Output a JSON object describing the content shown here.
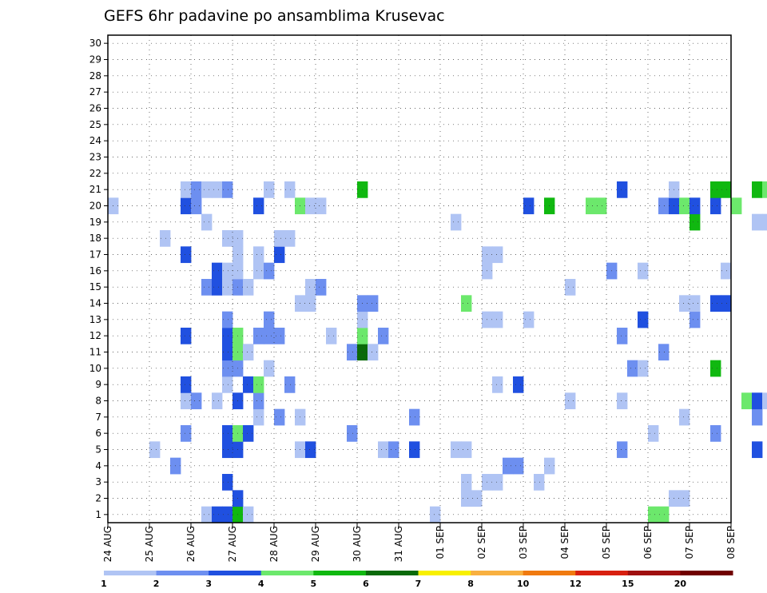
{
  "chart_data": {
    "type": "heatmap",
    "title": "GEFS 6hr padavine po ansamblima Krusevac",
    "x_dates": [
      "24 AUG",
      "25 AUG",
      "26 AUG",
      "27 AUG",
      "28 AUG",
      "29 AUG",
      "30 AUG",
      "31 AUG",
      "01 SEP",
      "02 SEP",
      "03 SEP",
      "04 SEP",
      "05 SEP",
      "06 SEP",
      "07 SEP",
      "08 SEP"
    ],
    "steps_per_day": 4,
    "members": [
      1,
      2,
      3,
      4,
      5,
      6,
      7,
      8,
      9,
      10,
      11,
      12,
      13,
      14,
      15,
      16,
      17,
      18,
      19,
      20,
      21,
      22,
      23,
      24,
      25,
      26,
      27,
      28,
      29,
      30
    ],
    "grid": true,
    "colorbar": {
      "position": "bottom",
      "labels": [
        "1",
        "2",
        "3",
        "4",
        "5",
        "6",
        "7",
        "8",
        "10",
        "12",
        "15",
        "20"
      ],
      "colors": [
        "#b0c4f4",
        "#6d8ff0",
        "#2050e0",
        "#6ce86c",
        "#10b810",
        "#0a6a0a",
        "#f8f000",
        "#f8b040",
        "#f07a10",
        "#d82010",
        "#a01010",
        "#700000"
      ]
    },
    "cells": [
      [
        0,
        9,
        0
      ],
      [
        0,
        10,
        2
      ],
      [
        0,
        11,
        2
      ],
      [
        0,
        12,
        4
      ],
      [
        0,
        13,
        0
      ],
      [
        0,
        31,
        0
      ],
      [
        0,
        52,
        3
      ],
      [
        0,
        53,
        3
      ],
      [
        1,
        12,
        2
      ],
      [
        1,
        34,
        0
      ],
      [
        1,
        35,
        0
      ],
      [
        1,
        54,
        0
      ],
      [
        1,
        55,
        0
      ],
      [
        2,
        11,
        2
      ],
      [
        2,
        34,
        0
      ],
      [
        2,
        36,
        0
      ],
      [
        2,
        37,
        0
      ],
      [
        2,
        41,
        0
      ],
      [
        3,
        6,
        1
      ],
      [
        3,
        38,
        1
      ],
      [
        3,
        39,
        1
      ],
      [
        3,
        42,
        0
      ],
      [
        3,
        64,
        1
      ],
      [
        3,
        66,
        0
      ],
      [
        4,
        4,
        0
      ],
      [
        4,
        11,
        2
      ],
      [
        4,
        12,
        2
      ],
      [
        4,
        18,
        0
      ],
      [
        4,
        19,
        2
      ],
      [
        4,
        26,
        0
      ],
      [
        4,
        27,
        1
      ],
      [
        4,
        29,
        2
      ],
      [
        4,
        33,
        0
      ],
      [
        4,
        34,
        0
      ],
      [
        4,
        49,
        1
      ],
      [
        4,
        62,
        2
      ],
      [
        4,
        68,
        0
      ],
      [
        4,
        71,
        1
      ],
      [
        4,
        72,
        2
      ],
      [
        5,
        7,
        1
      ],
      [
        5,
        11,
        2
      ],
      [
        5,
        12,
        3
      ],
      [
        5,
        13,
        2
      ],
      [
        5,
        23,
        1
      ],
      [
        5,
        52,
        0
      ],
      [
        5,
        58,
        1
      ],
      [
        5,
        67,
        2
      ],
      [
        5,
        68,
        3
      ],
      [
        5,
        69,
        0
      ],
      [
        5,
        76,
        0
      ],
      [
        5,
        77,
        0
      ],
      [
        5,
        78,
        1
      ],
      [
        5,
        79,
        1
      ],
      [
        6,
        14,
        0
      ],
      [
        6,
        16,
        1
      ],
      [
        6,
        18,
        0
      ],
      [
        6,
        29,
        1
      ],
      [
        6,
        55,
        0
      ],
      [
        6,
        62,
        1
      ],
      [
        6,
        64,
        2
      ],
      [
        6,
        70,
        2
      ],
      [
        6,
        71,
        2
      ],
      [
        6,
        72,
        3
      ],
      [
        6,
        73,
        0
      ],
      [
        6,
        75,
        0
      ],
      [
        7,
        7,
        0
      ],
      [
        7,
        8,
        1
      ],
      [
        7,
        10,
        0
      ],
      [
        7,
        12,
        2
      ],
      [
        7,
        14,
        1
      ],
      [
        7,
        44,
        0
      ],
      [
        7,
        49,
        0
      ],
      [
        7,
        61,
        3
      ],
      [
        7,
        62,
        2
      ],
      [
        7,
        63,
        0
      ],
      [
        7,
        65,
        2
      ],
      [
        7,
        66,
        3
      ],
      [
        7,
        67,
        1
      ],
      [
        7,
        76,
        3
      ],
      [
        7,
        77,
        0
      ],
      [
        7,
        78,
        1
      ],
      [
        7,
        79,
        1
      ],
      [
        7,
        81,
        3
      ],
      [
        7,
        82,
        3
      ],
      [
        8,
        7,
        2
      ],
      [
        8,
        11,
        0
      ],
      [
        8,
        13,
        2
      ],
      [
        8,
        14,
        3
      ],
      [
        8,
        17,
        1
      ],
      [
        8,
        37,
        0
      ],
      [
        8,
        39,
        2
      ],
      [
        9,
        11,
        1
      ],
      [
        9,
        12,
        1
      ],
      [
        9,
        15,
        0
      ],
      [
        9,
        50,
        1
      ],
      [
        9,
        51,
        0
      ],
      [
        9,
        58,
        4
      ],
      [
        9,
        71,
        0
      ],
      [
        10,
        11,
        2
      ],
      [
        10,
        12,
        3
      ],
      [
        10,
        13,
        0
      ],
      [
        10,
        23,
        1
      ],
      [
        10,
        24,
        5
      ],
      [
        10,
        25,
        0
      ],
      [
        10,
        53,
        1
      ],
      [
        10,
        70,
        1
      ],
      [
        10,
        75,
        1
      ],
      [
        11,
        7,
        2
      ],
      [
        11,
        11,
        2
      ],
      [
        11,
        12,
        3
      ],
      [
        11,
        14,
        1
      ],
      [
        11,
        15,
        1
      ],
      [
        11,
        16,
        1
      ],
      [
        11,
        21,
        0
      ],
      [
        11,
        24,
        3
      ],
      [
        11,
        26,
        1
      ],
      [
        11,
        49,
        1
      ],
      [
        12,
        11,
        1
      ],
      [
        12,
        15,
        1
      ],
      [
        12,
        24,
        0
      ],
      [
        12,
        36,
        0
      ],
      [
        12,
        37,
        0
      ],
      [
        12,
        40,
        0
      ],
      [
        12,
        51,
        2
      ],
      [
        12,
        56,
        1
      ],
      [
        12,
        71,
        3
      ],
      [
        12,
        72,
        0
      ],
      [
        12,
        73,
        0
      ],
      [
        12,
        76,
        3
      ],
      [
        12,
        77,
        0
      ],
      [
        12,
        78,
        0
      ],
      [
        13,
        18,
        0
      ],
      [
        13,
        19,
        0
      ],
      [
        13,
        24,
        1
      ],
      [
        13,
        25,
        1
      ],
      [
        13,
        34,
        3
      ],
      [
        13,
        55,
        0
      ],
      [
        13,
        56,
        0
      ],
      [
        13,
        58,
        2
      ],
      [
        13,
        59,
        2
      ],
      [
        13,
        77,
        0
      ],
      [
        13,
        78,
        1
      ],
      [
        13,
        79,
        0
      ],
      [
        14,
        9,
        1
      ],
      [
        14,
        10,
        2
      ],
      [
        14,
        11,
        0
      ],
      [
        14,
        12,
        1
      ],
      [
        14,
        13,
        0
      ],
      [
        14,
        19,
        0
      ],
      [
        14,
        20,
        1
      ],
      [
        14,
        44,
        0
      ],
      [
        14,
        72,
        1
      ],
      [
        14,
        73,
        1
      ],
      [
        14,
        74,
        0
      ],
      [
        15,
        10,
        2
      ],
      [
        15,
        11,
        0
      ],
      [
        15,
        12,
        0
      ],
      [
        15,
        14,
        0
      ],
      [
        15,
        15,
        1
      ],
      [
        15,
        36,
        0
      ],
      [
        15,
        48,
        1
      ],
      [
        15,
        51,
        0
      ],
      [
        15,
        59,
        0
      ],
      [
        15,
        71,
        3
      ],
      [
        15,
        72,
        1
      ],
      [
        15,
        76,
        1
      ],
      [
        16,
        7,
        2
      ],
      [
        16,
        12,
        0
      ],
      [
        16,
        14,
        0
      ],
      [
        16,
        16,
        2
      ],
      [
        16,
        36,
        0
      ],
      [
        16,
        37,
        0
      ],
      [
        16,
        69,
        2
      ],
      [
        17,
        5,
        0
      ],
      [
        17,
        11,
        0
      ],
      [
        17,
        12,
        0
      ],
      [
        17,
        16,
        0
      ],
      [
        17,
        17,
        0
      ],
      [
        18,
        9,
        0
      ],
      [
        18,
        33,
        0
      ],
      [
        18,
        56,
        4
      ],
      [
        18,
        62,
        0
      ],
      [
        18,
        63,
        0
      ],
      [
        18,
        64,
        0
      ],
      [
        18,
        69,
        3
      ],
      [
        18,
        70,
        1
      ],
      [
        18,
        71,
        0
      ],
      [
        18,
        74,
        1
      ],
      [
        18,
        75,
        2
      ],
      [
        18,
        77,
        0
      ],
      [
        19,
        0,
        0
      ],
      [
        19,
        7,
        2
      ],
      [
        19,
        8,
        1
      ],
      [
        19,
        14,
        2
      ],
      [
        19,
        18,
        3
      ],
      [
        19,
        19,
        0
      ],
      [
        19,
        20,
        0
      ],
      [
        19,
        40,
        2
      ],
      [
        19,
        42,
        4
      ],
      [
        19,
        46,
        3
      ],
      [
        19,
        47,
        3
      ],
      [
        19,
        53,
        1
      ],
      [
        19,
        54,
        2
      ],
      [
        19,
        55,
        3
      ],
      [
        19,
        56,
        2
      ],
      [
        19,
        58,
        2
      ],
      [
        19,
        60,
        3
      ],
      [
        19,
        67,
        4
      ],
      [
        20,
        7,
        0
      ],
      [
        20,
        8,
        1
      ],
      [
        20,
        9,
        0
      ],
      [
        20,
        10,
        0
      ],
      [
        20,
        11,
        1
      ],
      [
        20,
        15,
        0
      ],
      [
        20,
        17,
        0
      ],
      [
        20,
        24,
        4
      ],
      [
        20,
        49,
        2
      ],
      [
        20,
        54,
        0
      ],
      [
        20,
        58,
        4
      ],
      [
        20,
        59,
        4
      ],
      [
        20,
        62,
        4
      ],
      [
        20,
        63,
        3
      ],
      [
        20,
        64,
        1
      ],
      [
        20,
        71,
        1
      ],
      [
        20,
        72,
        1
      ],
      [
        20,
        73,
        4
      ],
      [
        20,
        76,
        1
      ],
      [
        20,
        77,
        0
      ],
      [
        20,
        78,
        3
      ],
      [
        20,
        80,
        1
      ],
      [
        20,
        81,
        0
      ],
      [
        20,
        83,
        0
      ],
      [
        20,
        84,
        0
      ],
      [
        20,
        88,
        0
      ],
      [
        20,
        89,
        1
      ],
      [
        20,
        90,
        4
      ],
      [
        20,
        91,
        4
      ],
      [
        20,
        92,
        4
      ],
      [
        20,
        93,
        2
      ]
    ]
  }
}
